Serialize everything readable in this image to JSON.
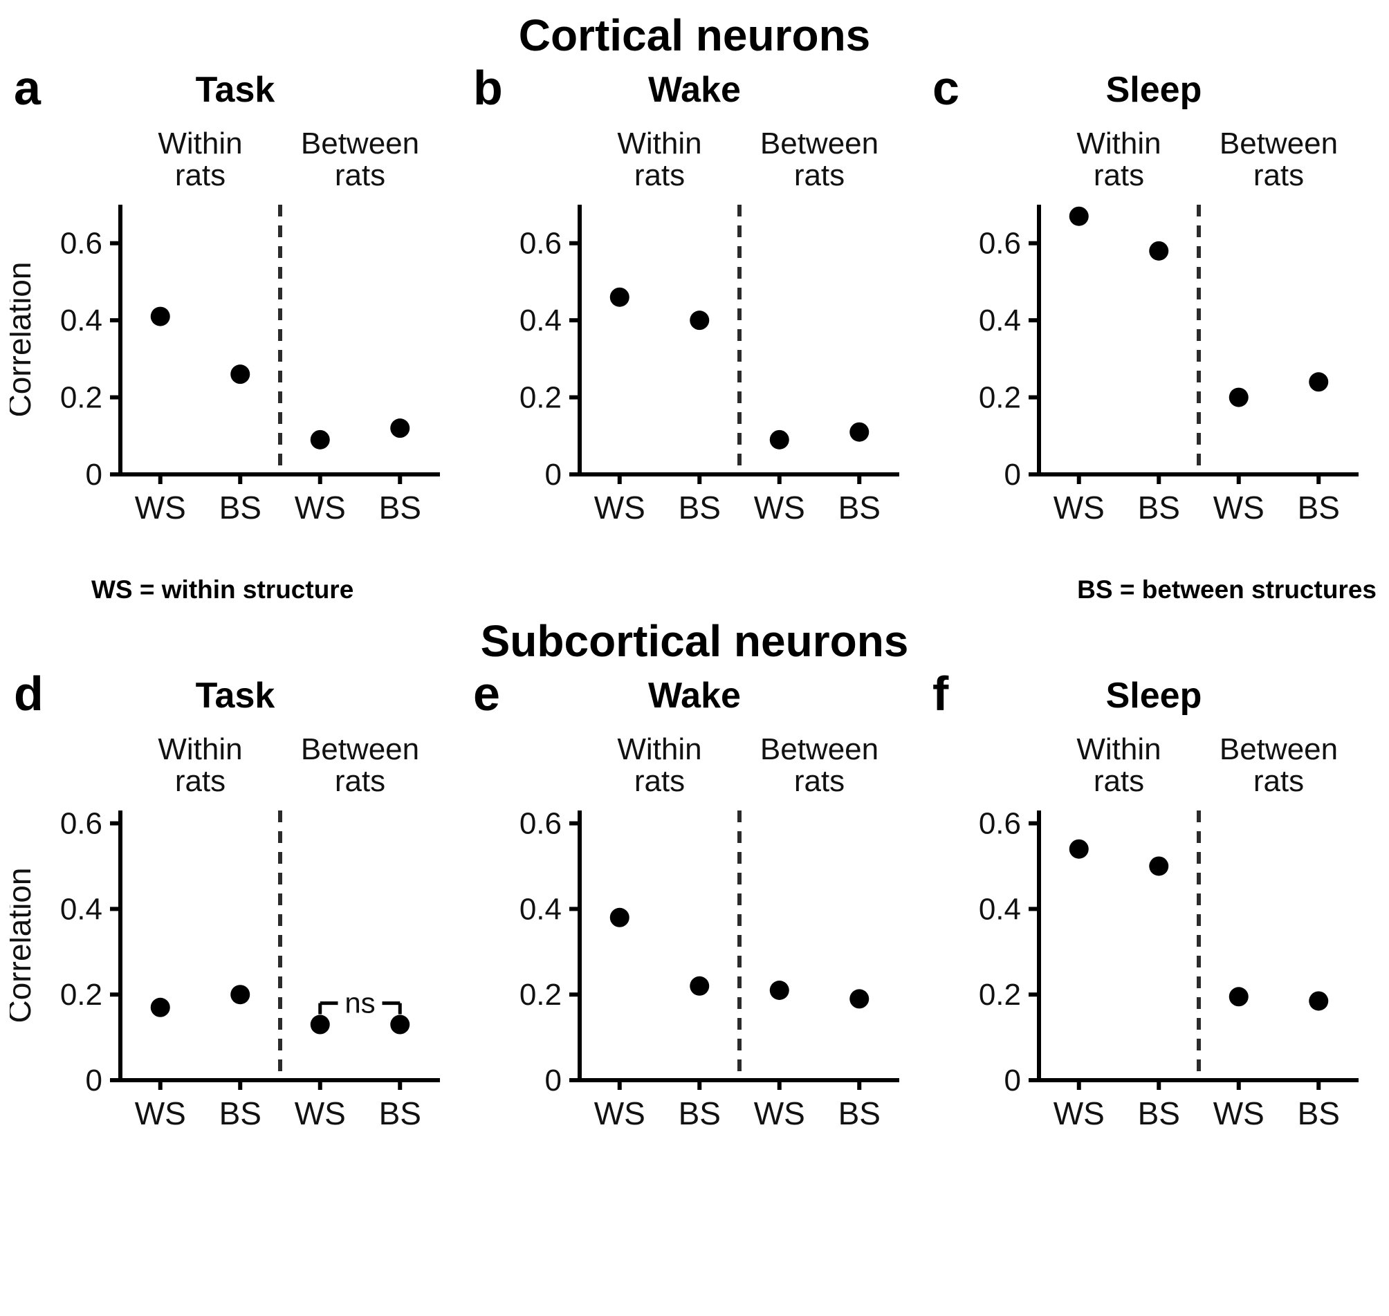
{
  "figure": {
    "top_title": "Cortical neurons",
    "bottom_title": "Subcortical neurons",
    "legend_ws": "WS = within structure",
    "legend_bs": "BS = between structures"
  },
  "chart_data": [
    {
      "id": "a",
      "type": "scatter",
      "panel_letter": "a",
      "title": "Task",
      "section": "Cortical neurons",
      "ylabel": "Correlation",
      "group_labels": [
        "Within rats",
        "Between rats"
      ],
      "categories": [
        "WS",
        "BS",
        "WS",
        "BS"
      ],
      "values": [
        0.41,
        0.26,
        0.09,
        0.12
      ],
      "yticks": [
        0,
        0.2,
        0.4,
        0.6
      ],
      "ylim": [
        0,
        0.7
      ],
      "divider": "dashed",
      "annotation": null
    },
    {
      "id": "b",
      "type": "scatter",
      "panel_letter": "b",
      "title": "Wake",
      "section": "Cortical neurons",
      "ylabel": "",
      "group_labels": [
        "Within rats",
        "Between rats"
      ],
      "categories": [
        "WS",
        "BS",
        "WS",
        "BS"
      ],
      "values": [
        0.46,
        0.4,
        0.09,
        0.11
      ],
      "yticks": [
        0,
        0.2,
        0.4,
        0.6
      ],
      "ylim": [
        0,
        0.7
      ],
      "divider": "dashed",
      "annotation": null
    },
    {
      "id": "c",
      "type": "scatter",
      "panel_letter": "c",
      "title": "Sleep",
      "section": "Cortical neurons",
      "ylabel": "",
      "group_labels": [
        "Within rats",
        "Between rats"
      ],
      "categories": [
        "WS",
        "BS",
        "WS",
        "BS"
      ],
      "values": [
        0.67,
        0.58,
        0.2,
        0.24
      ],
      "yticks": [
        0,
        0.2,
        0.4,
        0.6
      ],
      "ylim": [
        0,
        0.7
      ],
      "divider": "dashed",
      "annotation": null
    },
    {
      "id": "d",
      "type": "scatter",
      "panel_letter": "d",
      "title": "Task",
      "section": "Subcortical neurons",
      "ylabel": "Correlation",
      "group_labels": [
        "Within rats",
        "Between rats"
      ],
      "categories": [
        "WS",
        "BS",
        "WS",
        "BS"
      ],
      "values": [
        0.17,
        0.2,
        0.13,
        0.13
      ],
      "yticks": [
        0,
        0.2,
        0.4,
        0.6
      ],
      "ylim": [
        0,
        0.63
      ],
      "divider": "dashed",
      "annotation": {
        "text": "ns",
        "between": [
          2,
          3
        ],
        "y": 0.18
      }
    },
    {
      "id": "e",
      "type": "scatter",
      "panel_letter": "e",
      "title": "Wake",
      "section": "Subcortical neurons",
      "ylabel": "",
      "group_labels": [
        "Within rats",
        "Between rats"
      ],
      "categories": [
        "WS",
        "BS",
        "WS",
        "BS"
      ],
      "values": [
        0.38,
        0.22,
        0.21,
        0.19
      ],
      "yticks": [
        0,
        0.2,
        0.4,
        0.6
      ],
      "ylim": [
        0,
        0.63
      ],
      "divider": "dashed",
      "annotation": null
    },
    {
      "id": "f",
      "type": "scatter",
      "panel_letter": "f",
      "title": "Sleep",
      "section": "Subcortical neurons",
      "ylabel": "",
      "group_labels": [
        "Within rats",
        "Between rats"
      ],
      "categories": [
        "WS",
        "BS",
        "WS",
        "BS"
      ],
      "values": [
        0.54,
        0.5,
        0.195,
        0.185
      ],
      "yticks": [
        0,
        0.2,
        0.4,
        0.6
      ],
      "ylim": [
        0,
        0.63
      ],
      "divider": "dashed",
      "annotation": null
    }
  ]
}
